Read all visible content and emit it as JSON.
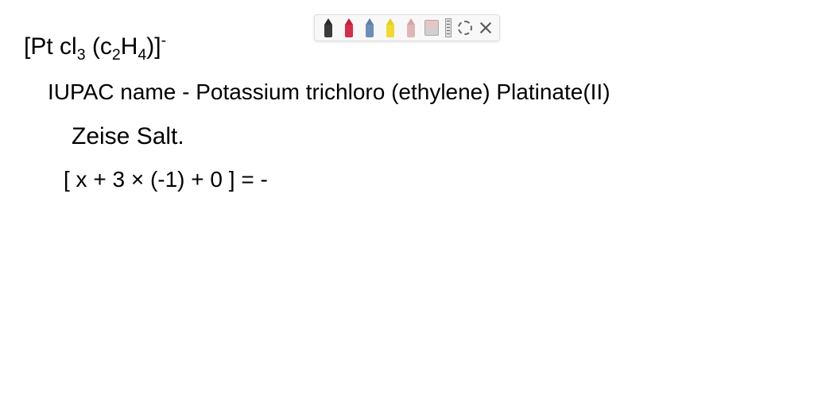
{
  "toolbar": {
    "pens": [
      {
        "tip_color": "#2a2a2a",
        "body_color": "#3a3a3a"
      },
      {
        "tip_color": "#c41e3a",
        "body_color": "#d42e4a"
      },
      {
        "tip_color": "#5b7fa6",
        "body_color": "#6b8fb6"
      },
      {
        "tip_color": "#e6d020",
        "body_color": "#f0da30"
      },
      {
        "tip_color": "#d4a5a5",
        "body_color": "#e0b5b5"
      }
    ]
  },
  "content": {
    "formula_line": "[Pt Cl₃ (C₂H₄)]⁻",
    "formula_prefix": "[Pt cl",
    "formula_sub1": "3",
    "formula_mid1": " (c",
    "formula_sub2": "2",
    "formula_mid2": "H",
    "formula_sub3": "4",
    "formula_suffix": ")]",
    "formula_sup": "-",
    "iupac_label": "IUPAC name - ",
    "iupac_value": "Potassium trichloro (ethylene) Platinate(II)",
    "common_name": "Zeise Salt.",
    "calc_line": "[ x  + 3 × (-1)  +  0 ] = -"
  },
  "styling": {
    "background": "#ffffff",
    "text_color": "#000000",
    "font_family": "'Comic Sans MS', cursive",
    "toolbar_bg": "#f8f8f8",
    "toolbar_border": "#dddddd"
  }
}
